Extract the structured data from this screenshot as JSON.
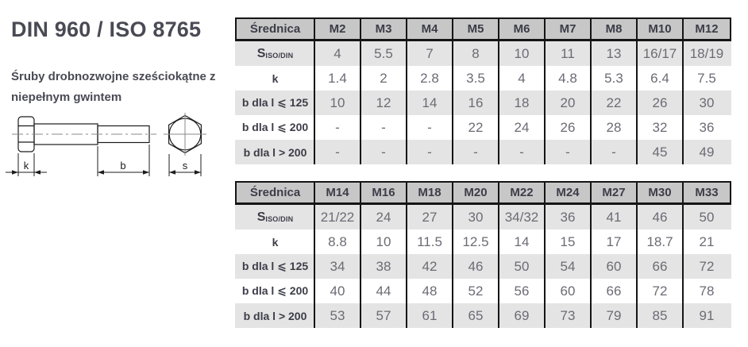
{
  "page": {
    "title": "DIN 960 / ISO 8765",
    "subtitle": "Śruby drobnozwojne sześciokątne z niepełnym gwintem"
  },
  "drawing": {
    "dim_k": "k",
    "dim_b": "b",
    "dim_s": "s"
  },
  "colors": {
    "header_bg": "#c7c7c7",
    "shaded_row_bg": "#e4e4e4",
    "border": "#151515",
    "heading_text": "#3d3d49",
    "value_text": "#6b6b75",
    "title_text": "#4a4a55"
  },
  "tables": [
    {
      "header_label": "Średnica",
      "columns": [
        "M2",
        "M3",
        "M4",
        "M5",
        "M6",
        "M7",
        "M8",
        "M10",
        "M12"
      ],
      "rows": [
        {
          "label": "S",
          "label_sub": "ISO/DIN",
          "shaded": true,
          "values": [
            "4",
            "5.5",
            "7",
            "8",
            "10",
            "11",
            "13",
            "16/17",
            "18/19"
          ]
        },
        {
          "label": "k",
          "shaded": false,
          "values": [
            "1.4",
            "2",
            "2.8",
            "3.5",
            "4",
            "4.8",
            "5.3",
            "6.4",
            "7.5"
          ]
        },
        {
          "label": "b dla l ⩽ 125",
          "shaded": true,
          "values": [
            "10",
            "12",
            "14",
            "16",
            "18",
            "20",
            "22",
            "26",
            "30"
          ]
        },
        {
          "label": "b dla l ⩽ 200",
          "shaded": false,
          "values": [
            "-",
            "-",
            "-",
            "22",
            "24",
            "26",
            "28",
            "32",
            "36"
          ]
        },
        {
          "label": "b dla l > 200",
          "shaded": true,
          "values": [
            "-",
            "-",
            "-",
            "-",
            "-",
            "-",
            "-",
            "45",
            "49"
          ]
        }
      ]
    },
    {
      "header_label": "Średnica",
      "columns": [
        "M14",
        "M16",
        "M18",
        "M20",
        "M22",
        "M24",
        "M27",
        "M30",
        "M33"
      ],
      "rows": [
        {
          "label": "S",
          "label_sub": "ISO/DIN",
          "shaded": true,
          "values": [
            "21/22",
            "24",
            "27",
            "30",
            "34/32",
            "36",
            "41",
            "46",
            "50"
          ]
        },
        {
          "label": "k",
          "shaded": false,
          "values": [
            "8.8",
            "10",
            "11.5",
            "12.5",
            "14",
            "15",
            "17",
            "18.7",
            "21"
          ]
        },
        {
          "label": "b dla l ⩽ 125",
          "shaded": true,
          "values": [
            "34",
            "38",
            "42",
            "46",
            "50",
            "54",
            "60",
            "66",
            "72"
          ]
        },
        {
          "label": "b dla l ⩽ 200",
          "shaded": false,
          "values": [
            "40",
            "44",
            "48",
            "52",
            "56",
            "60",
            "66",
            "72",
            "78"
          ]
        },
        {
          "label": "b dla l > 200",
          "shaded": true,
          "values": [
            "53",
            "57",
            "61",
            "65",
            "69",
            "73",
            "79",
            "85",
            "91"
          ]
        }
      ]
    }
  ]
}
